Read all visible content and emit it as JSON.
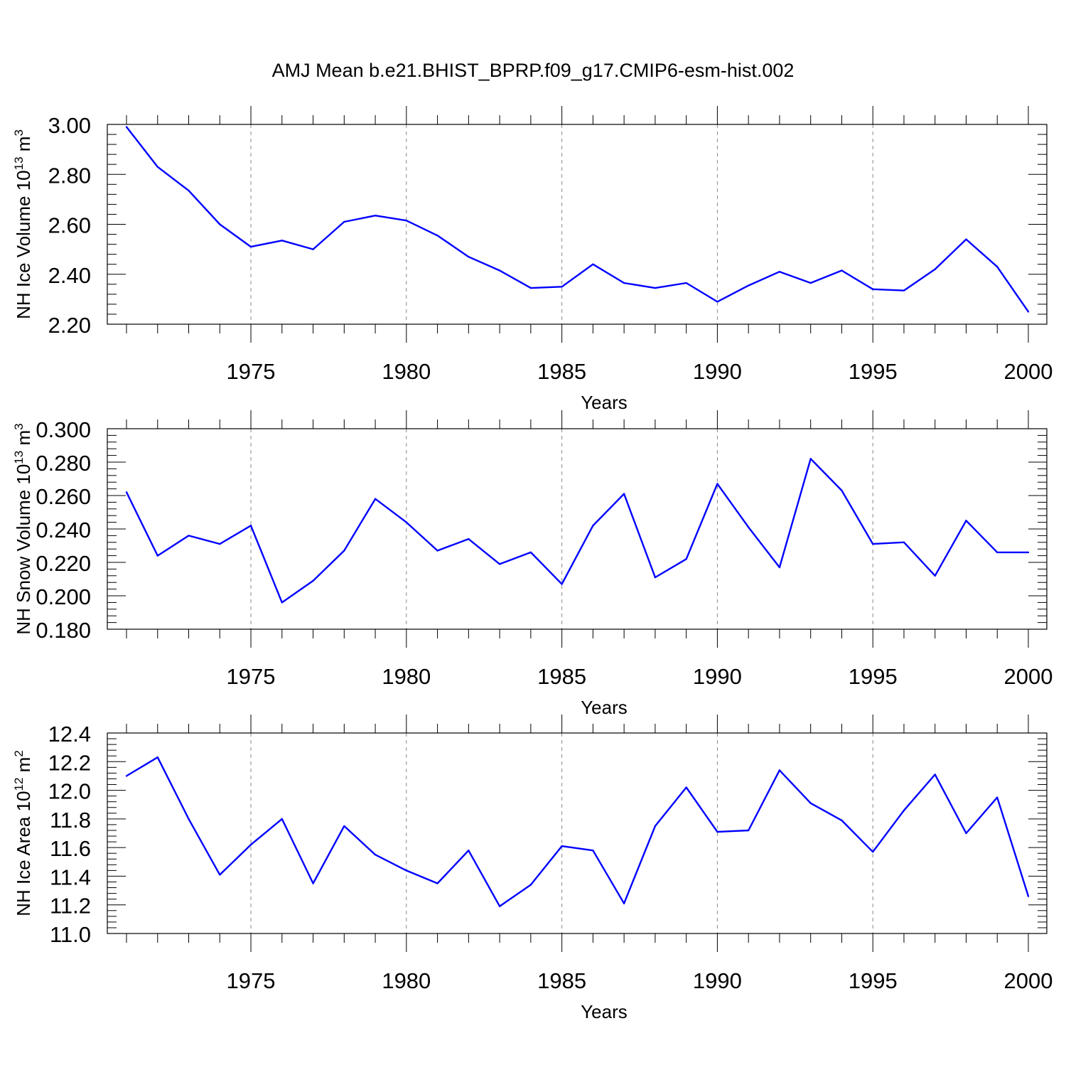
{
  "title": "AMJ Mean b.e21.BHIST_BPRP.f09_g17.CMIP6-esm-hist.002",
  "colors": {
    "line": "#0000ff",
    "axis": "#000000",
    "grid": "#888888"
  },
  "chart_data": [
    {
      "type": "line",
      "ylabel": {
        "text": "NH Ice Volume 10",
        "sup1": "13",
        "mid": " m",
        "sup2": "3"
      },
      "xlabel": "Years",
      "xlim": [
        1971,
        2000
      ],
      "ylim": [
        2.2,
        3.0
      ],
      "yticks": [
        "2.20",
        "2.40",
        "2.60",
        "2.80",
        "3.00"
      ],
      "xticks": [
        "1975",
        "1980",
        "1985",
        "1990",
        "1995",
        "2000"
      ],
      "grid": "vertical dashed at major x ticks",
      "series": [
        {
          "x": [
            1971,
            1972,
            1973,
            1974,
            1975,
            1976,
            1977,
            1978,
            1979,
            1980,
            1981,
            1982,
            1983,
            1984,
            1985,
            1986,
            1987,
            1988,
            1989,
            1990,
            1991,
            1992,
            1993,
            1994,
            1995,
            1996,
            1997,
            1998,
            1999,
            2000
          ],
          "values": [
            2.99,
            2.83,
            2.735,
            2.6,
            2.51,
            2.535,
            2.5,
            2.61,
            2.635,
            2.615,
            2.555,
            2.47,
            2.415,
            2.345,
            2.35,
            2.44,
            2.365,
            2.345,
            2.365,
            2.29,
            2.355,
            2.41,
            2.365,
            2.415,
            2.34,
            2.335,
            2.42,
            2.54,
            2.43,
            2.25
          ]
        }
      ]
    },
    {
      "type": "line",
      "ylabel": {
        "text": "NH Snow Volume 10",
        "sup1": "13",
        "mid": " m",
        "sup2": "3"
      },
      "xlabel": "Years",
      "xlim": [
        1971,
        2000
      ],
      "ylim": [
        0.18,
        0.3
      ],
      "yticks": [
        "0.180",
        "0.200",
        "0.220",
        "0.240",
        "0.260",
        "0.280",
        "0.300"
      ],
      "xticks": [
        "1975",
        "1980",
        "1985",
        "1990",
        "1995",
        "2000"
      ],
      "grid": "vertical dashed at major x ticks",
      "series": [
        {
          "x": [
            1971,
            1972,
            1973,
            1974,
            1975,
            1976,
            1977,
            1978,
            1979,
            1980,
            1981,
            1982,
            1983,
            1984,
            1985,
            1986,
            1987,
            1988,
            1989,
            1990,
            1991,
            1992,
            1993,
            1994,
            1995,
            1996,
            1997,
            1998,
            1999,
            2000
          ],
          "values": [
            0.262,
            0.224,
            0.236,
            0.231,
            0.242,
            0.196,
            0.209,
            0.227,
            0.258,
            0.244,
            0.227,
            0.234,
            0.219,
            0.226,
            0.207,
            0.242,
            0.261,
            0.211,
            0.222,
            0.267,
            0.241,
            0.217,
            0.282,
            0.263,
            0.231,
            0.232,
            0.212,
            0.245,
            0.226,
            0.226
          ]
        }
      ]
    },
    {
      "type": "line",
      "ylabel": {
        "text": "NH Ice Area 10",
        "sup1": "12",
        "mid": " m",
        "sup2": "2"
      },
      "xlabel": "Years",
      "xlim": [
        1971,
        2000
      ],
      "ylim": [
        11.0,
        12.4
      ],
      "yticks": [
        "11.0",
        "11.2",
        "11.4",
        "11.6",
        "11.8",
        "12.0",
        "12.2",
        "12.4"
      ],
      "xticks": [
        "1975",
        "1980",
        "1985",
        "1990",
        "1995",
        "2000"
      ],
      "grid": "vertical dashed at major x ticks",
      "series": [
        {
          "x": [
            1971,
            1972,
            1973,
            1974,
            1975,
            1976,
            1977,
            1978,
            1979,
            1980,
            1981,
            1982,
            1983,
            1984,
            1985,
            1986,
            1987,
            1988,
            1989,
            1990,
            1991,
            1992,
            1993,
            1994,
            1995,
            1996,
            1997,
            1998,
            1999,
            2000
          ],
          "values": [
            12.1,
            12.23,
            11.8,
            11.41,
            11.62,
            11.8,
            11.35,
            11.75,
            11.55,
            11.44,
            11.35,
            11.58,
            11.19,
            11.34,
            11.61,
            11.58,
            11.21,
            11.75,
            12.02,
            11.71,
            11.72,
            12.14,
            11.91,
            11.79,
            11.57,
            11.86,
            12.11,
            11.7,
            11.95,
            11.26
          ]
        }
      ]
    }
  ]
}
